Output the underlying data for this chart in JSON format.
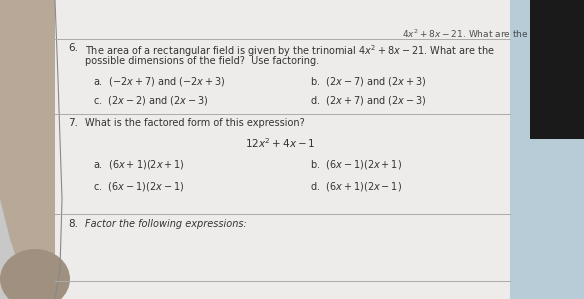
{
  "bg_color": "#c8c8c8",
  "paper_color": "#eeecea",
  "line_color": "#aaaaaa",
  "text_color": "#333333",
  "title_color": "#222222",
  "q6_num": "6.",
  "q6_text1": "The area of a rectangular field is given by the trinomial $4x^2 + 8x - 21$. What are the",
  "q6_text2": "possible dimensions of the field?  Use factoring.",
  "q6_a": "a.  $(-2x + 7)$ and $(-2x + 3)$",
  "q6_b": "b.  $(2x - 7)$ and $(2x + 3)$",
  "q6_c": "c.  $(2x - 2)$ and $(2x - 3)$",
  "q6_d": "d.  $(2x + 7)$ and $(2x - 3)$",
  "q7_num": "7.",
  "q7_text": "What is the factored form of this expression?",
  "q7_expr": "$12x^2 + 4x - 1$",
  "q7_a": "a.  $(6x + 1)(2x + 1)$",
  "q7_b": "b.  $(6x - 1)(2x + 1)$",
  "q7_c": "c.  $(6x - 1)(2x - 1)$",
  "q7_d": "d.  $(6x + 1)(2x - 1)$",
  "q8_text": "Factor the following expressions:",
  "right_bg": "#b8ccd8",
  "hand_color": "#c4a882"
}
